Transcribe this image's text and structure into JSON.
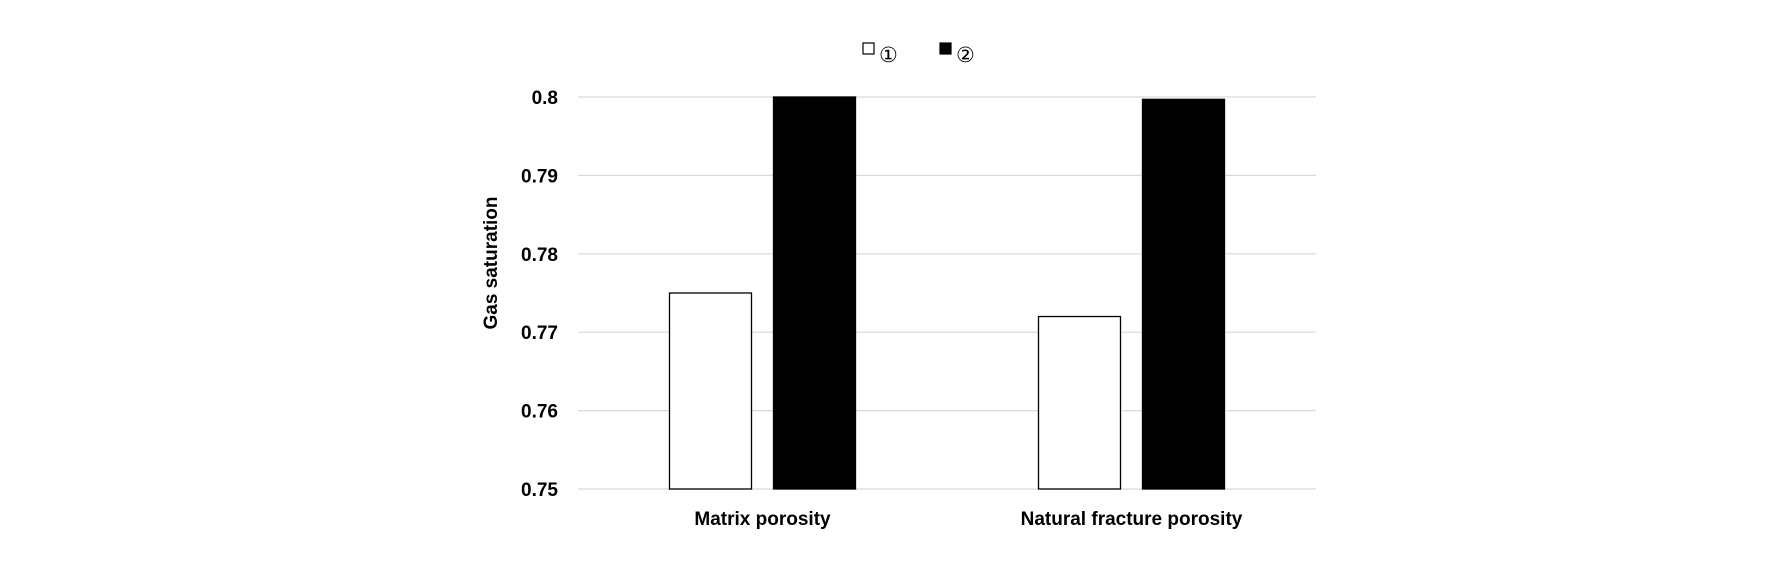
{
  "chart_data": {
    "type": "bar",
    "categories": [
      "Matrix porosity",
      "Natural fracture porosity"
    ],
    "series": [
      {
        "name": "①",
        "values": [
          0.775,
          0.772
        ],
        "fill": "#ffffff",
        "stroke": "#000000"
      },
      {
        "name": "②",
        "values": [
          0.8,
          0.7997
        ],
        "fill": "#000000",
        "stroke": "#000000"
      }
    ],
    "ylabel": "Gas saturation",
    "xlabel": "",
    "title": "",
    "ylim": [
      0.75,
      0.8
    ],
    "yticks": [
      0.75,
      0.76,
      0.77,
      0.78,
      0.79,
      0.8
    ],
    "ytick_labels": [
      "0.75",
      "0.76",
      "0.77",
      "0.78",
      "0.79",
      "0.8"
    ],
    "grid": true,
    "grid_color": "#d9d9d9",
    "legend": "top-center"
  }
}
